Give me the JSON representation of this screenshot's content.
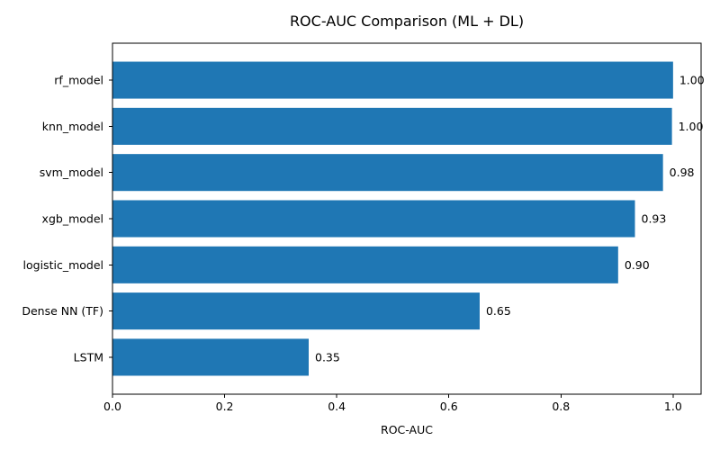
{
  "chart_data": {
    "type": "bar",
    "orientation": "horizontal",
    "title": "ROC-AUC Comparison (ML + DL)",
    "xlabel": "ROC-AUC",
    "ylabel": "",
    "categories": [
      "rf_model",
      "knn_model",
      "svm_model",
      "xgb_model",
      "logistic_model",
      "Dense NN (TF)",
      "LSTM"
    ],
    "values": [
      1.0,
      0.998,
      0.982,
      0.932,
      0.902,
      0.655,
      0.35
    ],
    "value_labels": [
      "1.00",
      "1.00",
      "0.98",
      "0.93",
      "0.90",
      "0.65",
      "0.35"
    ],
    "xlim": [
      0,
      1.05
    ],
    "xticks": [
      0.0,
      0.2,
      0.4,
      0.6,
      0.8,
      1.0
    ],
    "xtick_labels": [
      "0.0",
      "0.2",
      "0.4",
      "0.6",
      "0.8",
      "1.0"
    ],
    "bar_color": "#1f77b4",
    "grid": false,
    "legend": "none"
  }
}
